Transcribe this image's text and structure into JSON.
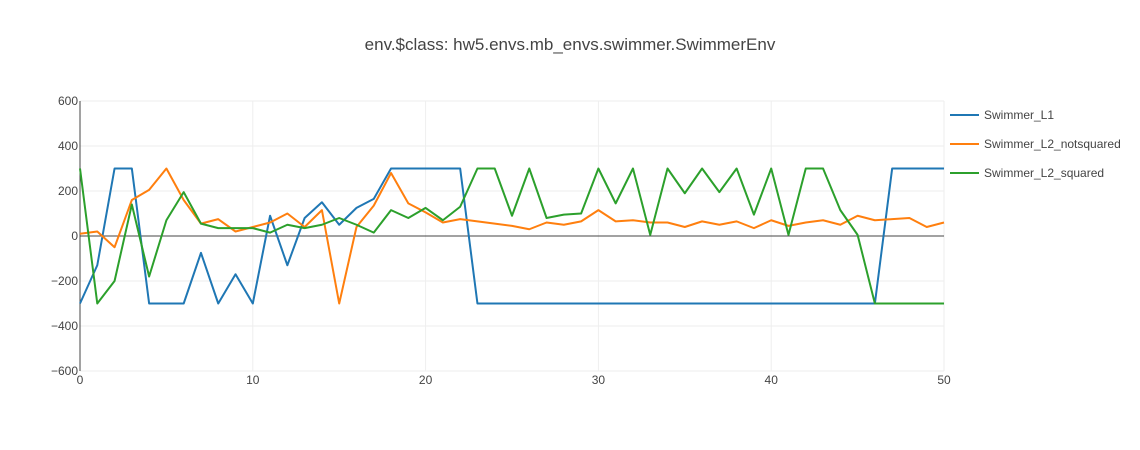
{
  "chart_data": {
    "type": "line",
    "title": "env.$class: hw5.envs.mb_envs.swimmer.SwimmerEnv",
    "xlabel": "",
    "ylabel": "",
    "xlim": [
      0,
      50
    ],
    "ylim": [
      -600,
      600
    ],
    "x_ticks": [
      0,
      10,
      20,
      30,
      40,
      50
    ],
    "y_ticks": [
      600,
      400,
      200,
      0,
      -200,
      -400,
      -600
    ],
    "grid": true,
    "legend_position": "right",
    "x": [
      0,
      1,
      2,
      3,
      4,
      5,
      6,
      7,
      8,
      9,
      10,
      11,
      12,
      13,
      14,
      15,
      16,
      17,
      18,
      19,
      20,
      21,
      22,
      23,
      24,
      25,
      26,
      27,
      28,
      29,
      30,
      31,
      32,
      33,
      34,
      35,
      36,
      37,
      38,
      39,
      40,
      41,
      42,
      43,
      44,
      45,
      46,
      47,
      48,
      49,
      50
    ],
    "series": [
      {
        "name": "Swimmer_L1",
        "color": "#1f77b4",
        "values": [
          -300,
          -130,
          300,
          300,
          -300,
          -300,
          -300,
          -75,
          -300,
          -170,
          -300,
          90,
          -130,
          80,
          150,
          50,
          125,
          165,
          300,
          300,
          300,
          300,
          300,
          -300,
          -300,
          -300,
          -300,
          -300,
          -300,
          -300,
          -300,
          -300,
          -300,
          -300,
          -300,
          -300,
          -300,
          -300,
          -300,
          -300,
          -300,
          -300,
          -300,
          -300,
          -300,
          -300,
          -300,
          300,
          300,
          300,
          300
        ]
      },
      {
        "name": "Swimmer_L2_notsquared",
        "color": "#ff7f0e",
        "values": [
          10,
          20,
          -50,
          160,
          205,
          300,
          160,
          55,
          75,
          20,
          40,
          60,
          100,
          40,
          115,
          -300,
          40,
          135,
          280,
          145,
          105,
          60,
          75,
          65,
          55,
          45,
          30,
          60,
          50,
          65,
          115,
          65,
          70,
          60,
          60,
          40,
          65,
          50,
          65,
          35,
          70,
          45,
          60,
          70,
          50,
          90,
          70,
          75,
          80,
          40,
          60
        ]
      },
      {
        "name": "Swimmer_L2_squared",
        "color": "#2ca02c",
        "values": [
          300,
          -300,
          -200,
          140,
          -180,
          70,
          195,
          55,
          35,
          35,
          35,
          15,
          50,
          35,
          50,
          80,
          50,
          15,
          115,
          80,
          125,
          70,
          130,
          300,
          300,
          90,
          300,
          80,
          95,
          100,
          300,
          145,
          300,
          5,
          300,
          190,
          300,
          195,
          300,
          95,
          300,
          5,
          300,
          300,
          115,
          5,
          -300,
          -300,
          -300,
          -300,
          -300
        ]
      }
    ]
  }
}
